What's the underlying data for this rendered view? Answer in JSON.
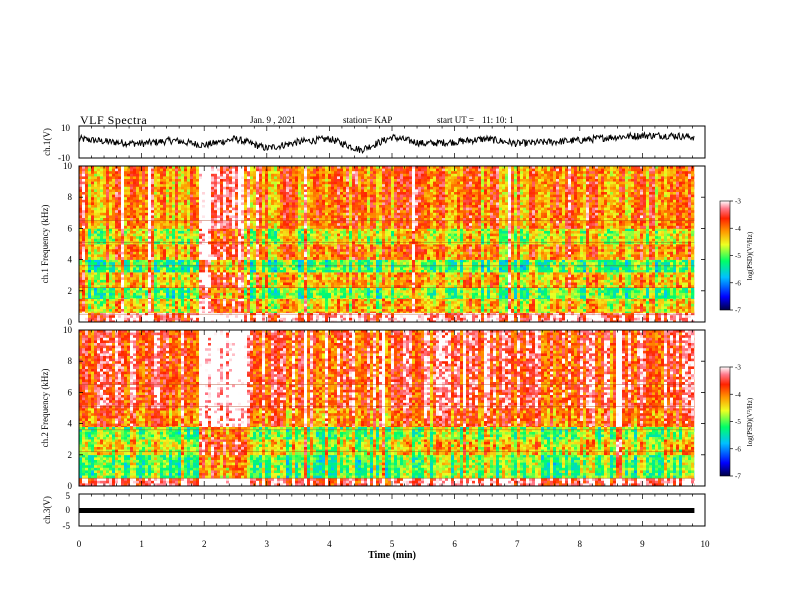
{
  "header": {
    "title": "VLF Spectra",
    "date": "Jan. 9 , 2021",
    "station": "station= KAP",
    "start_ut_label": "start UT =",
    "start_ut": "11: 10: 1"
  },
  "colors": {
    "trace": "#000000",
    "spectrum_scale": [
      "#000066",
      "#0000ff",
      "#00bfff",
      "#00ff66",
      "#ccff33",
      "#ffff00",
      "#ff9900",
      "#ff2200",
      "#ff6677",
      "#ffffff"
    ]
  },
  "chart_data": [
    {
      "panel": "ch1-waveform",
      "type": "line",
      "ylabel": "ch.1(V)",
      "ylim": [
        -10,
        10
      ],
      "y_ticks": [
        "10",
        "-10"
      ],
      "x": [
        0,
        0.5,
        1,
        1.5,
        2,
        2.5,
        3,
        3.5,
        4,
        4.5,
        5,
        5.5,
        6,
        6.5,
        7,
        7.5,
        8,
        8.5,
        9,
        9.5,
        9.83
      ],
      "values": [
        2,
        0,
        -1,
        1,
        -2,
        2,
        -4,
        0,
        2,
        -5,
        3,
        -1,
        0,
        2,
        -1,
        0,
        1,
        3,
        4,
        4,
        3
      ],
      "note_range": "approx. -5 to 5 V",
      "grid": false
    },
    {
      "panel": "ch1-spectrogram",
      "type": "heatmap",
      "ylabel": "ch.1 Frequency (kHz)",
      "ylim": [
        0,
        10
      ],
      "y_ticks": [
        "0",
        "2",
        "4",
        "6",
        "8",
        "10"
      ],
      "colorbar_label": "log(PSD)(V²/Hz)",
      "colorbar_ticks": [
        "-3",
        "-4",
        "-5",
        "-6",
        "-7"
      ],
      "colorbar_range": [
        -7,
        -3
      ],
      "bands": [
        {
          "fmin": 0,
          "fmax": 0.6,
          "level": -3.2
        },
        {
          "fmin": 0.6,
          "fmax": 1.5,
          "level": -4.4
        },
        {
          "fmin": 1.5,
          "fmax": 2.2,
          "level": -5.0
        },
        {
          "fmin": 2.2,
          "fmax": 3.2,
          "level": -4.3
        },
        {
          "fmin": 3.2,
          "fmax": 4.0,
          "level": -5.1
        },
        {
          "fmin": 4.0,
          "fmax": 5.0,
          "level": -4.1
        },
        {
          "fmin": 5.0,
          "fmax": 6.0,
          "level": -4.6
        },
        {
          "fmin": 6.0,
          "fmax": 10.0,
          "level": -4.0
        }
      ],
      "burst_minutes": [
        1.9,
        2.6
      ]
    },
    {
      "panel": "ch2-spectrogram",
      "type": "heatmap",
      "ylabel": "ch.2 Frequency (kHz)",
      "ylim": [
        0,
        10
      ],
      "y_ticks": [
        "0",
        "2",
        "4",
        "6",
        "8",
        "10"
      ],
      "colorbar_label": "log(PSD)(V²/Hz)",
      "colorbar_ticks": [
        "-3",
        "-4",
        "-5",
        "-6",
        "-7"
      ],
      "colorbar_range": [
        -7,
        -3
      ],
      "bands": [
        {
          "fmin": 0,
          "fmax": 0.5,
          "level": -3.3
        },
        {
          "fmin": 0.5,
          "fmax": 2.0,
          "level": -5.0
        },
        {
          "fmin": 2.0,
          "fmax": 3.0,
          "level": -4.5
        },
        {
          "fmin": 3.0,
          "fmax": 3.8,
          "level": -4.9
        },
        {
          "fmin": 3.8,
          "fmax": 5.0,
          "level": -3.9
        },
        {
          "fmin": 5.0,
          "fmax": 10.0,
          "level": -3.6
        }
      ],
      "burst_minutes": [
        1.9,
        2.6
      ]
    },
    {
      "panel": "ch3-waveform",
      "type": "line",
      "ylabel": "ch.3(V)",
      "ylim": [
        -5,
        5
      ],
      "y_ticks": [
        "5",
        "0",
        "-5"
      ],
      "x": [
        0,
        9.83
      ],
      "values": [
        0,
        0
      ],
      "note_range": "approx. -0.4 to 0.4 V"
    }
  ],
  "x_axis": {
    "label": "Time (min)",
    "ticks": [
      "0",
      "1",
      "2",
      "3",
      "4",
      "5",
      "6",
      "7",
      "8",
      "9",
      "10"
    ],
    "range": [
      0,
      10
    ],
    "data_end": 9.83
  }
}
